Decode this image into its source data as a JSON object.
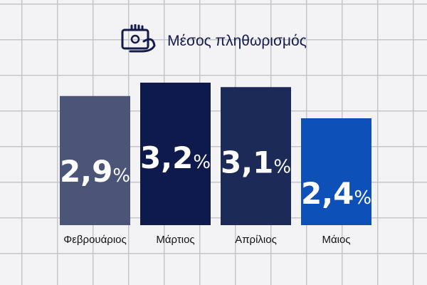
{
  "header": {
    "title": "Μέσος πληθωρισμός",
    "icon": "hand-money-icon"
  },
  "chart_data": {
    "type": "bar",
    "title": "Μέσος πληθωρισμός",
    "categories": [
      "Φεβρουάριος",
      "Μάρτιος",
      "Απρίλιος",
      "Μάιος"
    ],
    "values": [
      2.9,
      3.2,
      3.1,
      2.4
    ],
    "value_labels": [
      "2,9",
      "3,2",
      "3,1",
      "2,4"
    ],
    "unit": "%",
    "colors": [
      "#4a5578",
      "#0d1a4b",
      "#1c2a57",
      "#0d50b8"
    ],
    "xlabel": "",
    "ylabel": "",
    "grid": true
  },
  "colors": {
    "background": "#f3f3f6",
    "grid": "#c4c4cc",
    "text": "#141a4a"
  }
}
